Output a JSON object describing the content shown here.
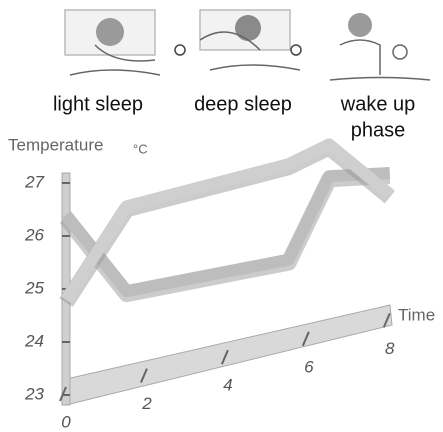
{
  "stages": [
    {
      "lines": [
        "light sleep"
      ]
    },
    {
      "lines": [
        "deep sleep"
      ]
    },
    {
      "lines": [
        "wake up",
        "phase"
      ]
    }
  ],
  "chart_data": {
    "type": "line",
    "y_label": "Temperature",
    "y_unit": "°C",
    "x_label": "Time",
    "xlim": [
      0,
      8.5
    ],
    "xticks": [
      0,
      2,
      4,
      6,
      8
    ],
    "ylim": [
      23,
      27.3
    ],
    "yticks": [
      23,
      24,
      25,
      26,
      27
    ],
    "series": [
      {
        "color": "#bdbdbd",
        "x": [
          0,
          1.5,
          5.5,
          6.5,
          8
        ],
        "values": [
          26.4,
          24.7,
          24.6,
          26.0,
          25.8
        ]
      },
      {
        "color": "#cfcfcf",
        "x": [
          0,
          1.5,
          5.5,
          6.5,
          8
        ],
        "values": [
          24.8,
          26.3,
          26.4,
          26.6,
          25.4
        ]
      }
    ]
  }
}
